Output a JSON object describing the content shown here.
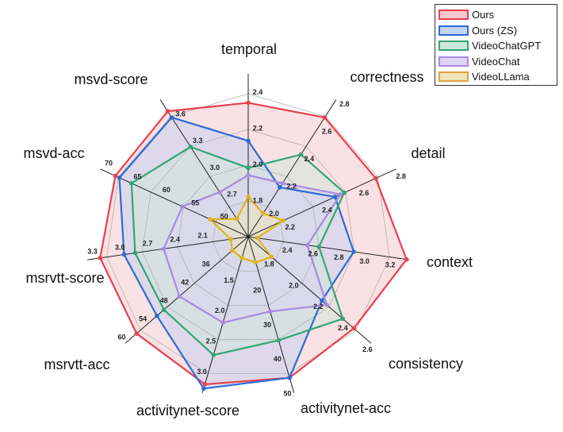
{
  "chart_data": {
    "type": "radar",
    "title": "",
    "grid": true,
    "legend_position": "top-right",
    "axes": [
      {
        "name": "temporal",
        "min": 1.6,
        "max": 2.5,
        "ticks": [
          "1.8",
          "2.0",
          "2.2",
          "2.4"
        ]
      },
      {
        "name": "correctness",
        "min": 1.8,
        "max": 2.8,
        "ticks": [
          "2.0",
          "2.2",
          "2.4",
          "2.6",
          "2.8"
        ]
      },
      {
        "name": "detail",
        "min": 2.0,
        "max": 2.8,
        "ticks": [
          "2.2",
          "2.4",
          "2.6",
          "2.8"
        ]
      },
      {
        "name": "context",
        "min": 2.1,
        "max": 3.35,
        "ticks": [
          "2.4",
          "2.6",
          "2.8",
          "3.0",
          "3.2"
        ]
      },
      {
        "name": "consistency",
        "min": 1.6,
        "max": 2.6,
        "ticks": [
          "1.8",
          "2.0",
          "2.2",
          "2.4",
          "2.6"
        ]
      },
      {
        "name": "activitynet-acc",
        "min": 5,
        "max": 50.5,
        "ticks": [
          "20",
          "30",
          "40",
          "50"
        ]
      },
      {
        "name": "activitynet-score",
        "min": 0.75,
        "max": 3.31,
        "ticks": [
          "1.5",
          "2.0",
          "2.5",
          "3.0"
        ]
      },
      {
        "name": "msrvtt-acc",
        "min": 25,
        "max": 60,
        "ticks": [
          "36",
          "42",
          "48",
          "54",
          "60"
        ]
      },
      {
        "name": "msrvtt-score",
        "min": 1.6,
        "max": 3.35,
        "ticks": [
          "2.1",
          "2.4",
          "2.7",
          "3.0",
          "3.3"
        ]
      },
      {
        "name": "msvd-acc",
        "min": 45,
        "max": 70.6,
        "ticks": [
          "50",
          "55",
          "60",
          "65",
          "70"
        ]
      },
      {
        "name": "msvd-score",
        "min": 2.27,
        "max": 3.81,
        "ticks": [
          "2.7",
          "3.0",
          "3.3",
          "3.6"
        ]
      }
    ],
    "series": [
      {
        "name": "Ours",
        "color": "#e8404f",
        "fill": "#f6c9cc",
        "values": [
          2.34,
          2.67,
          2.69,
          3.33,
          2.46,
          46.1,
          3.17,
          56.8,
          3.21,
          68.0,
          3.68
        ]
      },
      {
        "name": "Ours (ZS)",
        "color": "#2e6bd4",
        "fill": "#c4d3f0",
        "values": [
          2.13,
          2.16,
          2.47,
          2.92,
          2.2,
          46.1,
          3.24,
          51.0,
          2.95,
          67.3,
          3.61
        ]
      },
      {
        "name": "VideoChatGPT",
        "color": "#34a572",
        "fill": "#cfe6dc",
        "values": [
          1.98,
          2.4,
          2.52,
          2.65,
          2.37,
          35.2,
          2.69,
          49.0,
          2.83,
          65.2,
          3.28
        ]
      },
      {
        "name": "VideoChat",
        "color": "#a88ae0",
        "fill": "#ddd3f3",
        "values": [
          1.94,
          2.19,
          2.5,
          2.56,
          2.24,
          26.8,
          2.16,
          44.6,
          2.52,
          56.4,
          2.77
        ]
      },
      {
        "name": "VideoLLama",
        "color": "#e0b21f",
        "fill": "#efe3b8",
        "legend_border": "#e0a040",
        "values": [
          1.82,
          1.97,
          2.19,
          2.17,
          1.79,
          12.5,
          1.1,
          29.5,
          1.79,
          51.6,
          2.47
        ]
      }
    ]
  }
}
